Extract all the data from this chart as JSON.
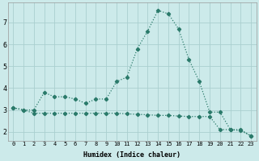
{
  "xlabel": "Humidex (Indice chaleur)",
  "x": [
    0,
    1,
    2,
    3,
    4,
    5,
    6,
    7,
    8,
    9,
    10,
    11,
    12,
    13,
    14,
    15,
    16,
    17,
    18,
    19,
    20,
    21,
    22,
    23
  ],
  "line1_y": [
    3.1,
    3.0,
    3.0,
    3.8,
    3.6,
    3.6,
    3.5,
    3.3,
    3.5,
    3.5,
    4.3,
    4.5,
    5.8,
    6.6,
    7.55,
    7.4,
    6.7,
    5.3,
    4.3,
    2.9,
    2.9,
    2.1,
    2.1,
    1.8
  ],
  "line2_y": [
    3.1,
    3.0,
    2.85,
    2.85,
    2.85,
    2.85,
    2.85,
    2.85,
    2.85,
    2.85,
    2.85,
    2.82,
    2.8,
    2.78,
    2.75,
    2.75,
    2.72,
    2.7,
    2.7,
    2.7,
    2.1,
    2.1,
    2.05,
    1.82
  ],
  "line_color": "#2a7a6a",
  "bg_color": "#cceaea",
  "grid_color": "#aacfcf",
  "ylim": [
    1.6,
    7.9
  ],
  "yticks": [
    2,
    3,
    4,
    5,
    6,
    7
  ],
  "xlim": [
    -0.5,
    23.5
  ]
}
